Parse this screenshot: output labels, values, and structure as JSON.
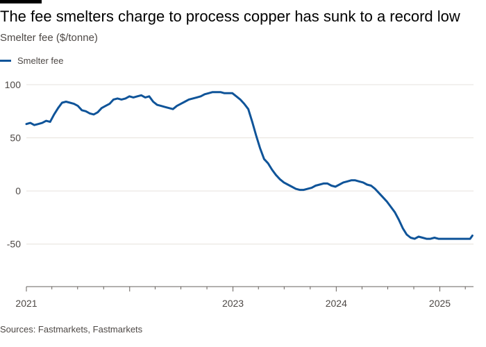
{
  "header": {
    "title": "The fee smelters charge to process copper has sunk to a record low",
    "subtitle": "Smelter fee ($/tonne)"
  },
  "legend": {
    "label": "Smelter fee"
  },
  "footer": {
    "source": "Sources: Fastmarkets, Fastmarkets"
  },
  "colors": {
    "series": "#0f5499",
    "grid": "#e6e1dc",
    "axis": "#66605c",
    "text": "#4d4845"
  },
  "chart_data": {
    "type": "line",
    "title": "The fee smelters charge to process copper has sunk to a record low",
    "subtitle": "Smelter fee ($/tonne)",
    "xlabel": "",
    "ylabel": "Smelter fee ($/tonne)",
    "ylim": [
      -90,
      100
    ],
    "yticks": [
      100,
      50,
      0,
      -50
    ],
    "xlim": [
      "2021-01-01",
      "2025-04-30"
    ],
    "xticks": [
      {
        "label": "2021",
        "date": "2021-01-01"
      },
      {
        "label": "2023",
        "date": "2023-01-01"
      },
      {
        "label": "2024",
        "date": "2024-01-01"
      },
      {
        "label": "2025",
        "date": "2025-01-01"
      }
    ],
    "grid": true,
    "legend_position": "top-left",
    "series": [
      {
        "name": "Smelter fee",
        "x": [
          "2021-01-01",
          "2021-01-15",
          "2021-01-29",
          "2021-02-12",
          "2021-02-26",
          "2021-03-12",
          "2021-03-26",
          "2021-04-09",
          "2021-04-23",
          "2021-05-07",
          "2021-05-21",
          "2021-06-04",
          "2021-06-18",
          "2021-07-02",
          "2021-07-16",
          "2021-07-30",
          "2021-08-13",
          "2021-08-27",
          "2021-09-10",
          "2021-09-24",
          "2021-10-08",
          "2021-10-22",
          "2021-11-05",
          "2021-11-19",
          "2021-12-03",
          "2021-12-17",
          "2021-12-31",
          "2022-01-14",
          "2022-01-28",
          "2022-02-11",
          "2022-02-25",
          "2022-03-11",
          "2022-03-25",
          "2022-04-08",
          "2022-04-22",
          "2022-05-06",
          "2022-05-20",
          "2022-06-03",
          "2022-06-17",
          "2022-07-01",
          "2022-07-15",
          "2022-07-29",
          "2022-08-12",
          "2022-08-26",
          "2022-09-09",
          "2022-09-23",
          "2022-10-07",
          "2022-10-21",
          "2022-11-04",
          "2022-11-18",
          "2022-12-02",
          "2022-12-16",
          "2022-12-30",
          "2023-01-13",
          "2023-01-27",
          "2023-02-10",
          "2023-02-24",
          "2023-03-10",
          "2023-03-24",
          "2023-04-07",
          "2023-04-21",
          "2023-05-05",
          "2023-05-19",
          "2023-06-02",
          "2023-06-16",
          "2023-06-30",
          "2023-07-14",
          "2023-07-28",
          "2023-08-11",
          "2023-08-25",
          "2023-09-08",
          "2023-09-22",
          "2023-10-06",
          "2023-10-20",
          "2023-11-03",
          "2023-11-17",
          "2023-12-01",
          "2023-12-15",
          "2023-12-29",
          "2024-01-12",
          "2024-01-26",
          "2024-02-09",
          "2024-02-23",
          "2024-03-08",
          "2024-03-22",
          "2024-04-05",
          "2024-04-19",
          "2024-05-03",
          "2024-05-17",
          "2024-05-31",
          "2024-06-14",
          "2024-06-28",
          "2024-07-12",
          "2024-07-26",
          "2024-08-09",
          "2024-08-23",
          "2024-09-06",
          "2024-09-20",
          "2024-10-04",
          "2024-10-18",
          "2024-11-01",
          "2024-11-15",
          "2024-11-29",
          "2024-12-13",
          "2024-12-27",
          "2025-01-10",
          "2025-01-24",
          "2025-02-07",
          "2025-02-21",
          "2025-03-07",
          "2025-03-21",
          "2025-04-04",
          "2025-04-18",
          "2025-04-26"
        ],
        "y": [
          63,
          64,
          62,
          63,
          64,
          66,
          65,
          72,
          78,
          83,
          84,
          83,
          82,
          80,
          76,
          75,
          73,
          72,
          74,
          78,
          80,
          82,
          86,
          87,
          86,
          87,
          89,
          88,
          89,
          90,
          88,
          89,
          84,
          81,
          80,
          79,
          78,
          77,
          80,
          82,
          84,
          86,
          87,
          88,
          89,
          91,
          92,
          93,
          93,
          93,
          92,
          92,
          92,
          89,
          86,
          82,
          77,
          65,
          52,
          40,
          30,
          26,
          20,
          15,
          11,
          8,
          6,
          4,
          2,
          1,
          1,
          2,
          3,
          5,
          6,
          7,
          7,
          5,
          4,
          6,
          8,
          9,
          10,
          10,
          9,
          8,
          6,
          5,
          2,
          -2,
          -6,
          -10,
          -15,
          -20,
          -27,
          -35,
          -41,
          -44,
          -45,
          -43,
          -44,
          -45,
          -45,
          -44,
          -45,
          -45,
          -45,
          -45,
          -45,
          -45,
          -45,
          -45,
          -45,
          -42
        ]
      }
    ]
  }
}
